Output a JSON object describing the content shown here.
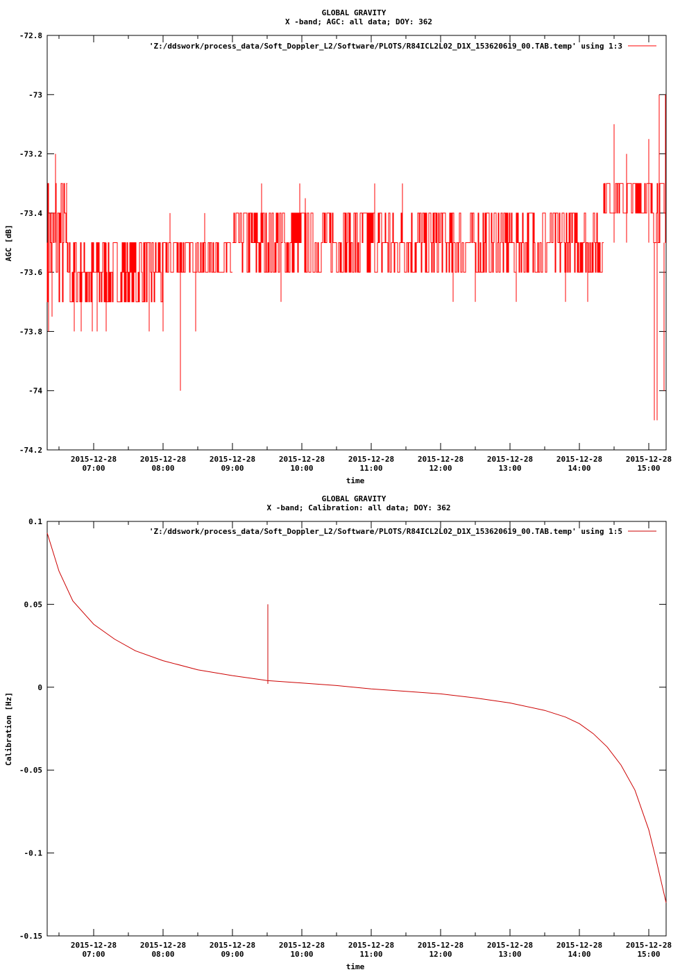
{
  "chart_data": [
    {
      "type": "line",
      "title": "GLOBAL GRAVITY",
      "subtitle": "X -band; AGC: all data; DOY: 362",
      "xlabel": "time",
      "ylabel": "AGC [dB]",
      "legend": "'Z:/ddswork/process_data/Soft_Doppler_L2/Software/PLOTS/R84ICL2L02_D1X_153620619_00.TAB.temp' using 1:3",
      "legend_position": "top-right",
      "line_color": "#ff0000",
      "x_unit": "hours",
      "xlim": [
        6.33,
        15.25
      ],
      "ylim": [
        -74.2,
        -72.8
      ],
      "x_ticks": [
        {
          "date": "2015-12-28",
          "time": "07:00",
          "x": 7
        },
        {
          "date": "2015-12-28",
          "time": "08:00",
          "x": 8
        },
        {
          "date": "2015-12-28",
          "time": "09:00",
          "x": 9
        },
        {
          "date": "2015-12-28",
          "time": "10:00",
          "x": 10
        },
        {
          "date": "2015-12-28",
          "time": "11:00",
          "x": 11
        },
        {
          "date": "2015-12-28",
          "time": "12:00",
          "x": 12
        },
        {
          "date": "2015-12-28",
          "time": "13:00",
          "x": 13
        },
        {
          "date": "2015-12-28",
          "time": "14:00",
          "x": 14
        },
        {
          "date": "2015-12-28",
          "time": "15:00",
          "x": 15
        }
      ],
      "y_ticks": [
        {
          "label": "-72.8",
          "y": -72.8
        },
        {
          "label": "-73",
          "y": -73.0
        },
        {
          "label": "-73.2",
          "y": -73.2
        },
        {
          "label": "-73.4",
          "y": -73.4
        },
        {
          "label": "-73.6",
          "y": -73.6
        },
        {
          "label": "-73.8",
          "y": -73.8
        },
        {
          "label": "-74",
          "y": -74.0
        },
        {
          "label": "-74.2",
          "y": -74.2
        }
      ],
      "series": [
        {
          "segments": [
            {
              "x0": 6.33,
              "x1": 6.62,
              "lo": -73.7,
              "hi": -73.3
            },
            {
              "x0": 6.62,
              "x1": 8.0,
              "lo": -73.7,
              "hi": -73.5
            },
            {
              "x0": 8.0,
              "x1": 9.0,
              "lo": -73.6,
              "hi": -73.5
            },
            {
              "x0": 9.0,
              "x1": 14.35,
              "lo": -73.6,
              "hi": -73.4
            },
            {
              "x0": 14.35,
              "x1": 15.0,
              "lo": -73.4,
              "hi": -73.3
            },
            {
              "x0": 15.0,
              "x1": 15.25,
              "lo": -73.5,
              "hi": -73.3
            }
          ],
          "spikes": [
            [
              6.35,
              -73.8
            ],
            [
              6.4,
              -73.75
            ],
            [
              6.45,
              -73.2
            ],
            [
              6.55,
              -73.3
            ],
            [
              6.72,
              -73.8
            ],
            [
              6.82,
              -73.8
            ],
            [
              6.98,
              -73.8
            ],
            [
              7.05,
              -73.8
            ],
            [
              7.18,
              -73.8
            ],
            [
              7.8,
              -73.8
            ],
            [
              8.0,
              -73.8
            ],
            [
              8.25,
              -74.0
            ],
            [
              8.47,
              -73.8
            ],
            [
              8.1,
              -73.4
            ],
            [
              8.6,
              -73.4
            ],
            [
              9.42,
              -73.3
            ],
            [
              9.7,
              -73.7
            ],
            [
              9.97,
              -73.3
            ],
            [
              10.05,
              -73.35
            ],
            [
              11.05,
              -73.3
            ],
            [
              11.45,
              -73.3
            ],
            [
              12.18,
              -73.7
            ],
            [
              12.5,
              -73.7
            ],
            [
              13.09,
              -73.7
            ],
            [
              13.8,
              -73.7
            ],
            [
              14.12,
              -73.7
            ],
            [
              14.5,
              -73.1
            ],
            [
              14.68,
              -73.2
            ],
            [
              15.0,
              -73.15
            ],
            [
              15.08,
              -74.1
            ],
            [
              15.12,
              -74.1
            ],
            [
              15.15,
              -73.0
            ],
            [
              15.22,
              -74.0
            ],
            [
              15.24,
              -73.0
            ]
          ]
        }
      ]
    },
    {
      "type": "line",
      "title": "GLOBAL GRAVITY",
      "subtitle": "X -band; Calibration: all data; DOY: 362",
      "xlabel": "time",
      "ylabel": "Calibration [Hz]",
      "legend": "'Z:/ddswork/process_data/Soft_Doppler_L2/Software/PLOTS/R84ICL2L02_D1X_153620619_00.TAB.temp' using 1:5",
      "legend_position": "top-right",
      "line_color": "#cc0000",
      "x_unit": "hours",
      "xlim": [
        6.33,
        15.25
      ],
      "ylim": [
        -0.15,
        0.1
      ],
      "x_ticks": [
        {
          "date": "2015-12-28",
          "time": "07:00",
          "x": 7
        },
        {
          "date": "2015-12-28",
          "time": "08:00",
          "x": 8
        },
        {
          "date": "2015-12-28",
          "time": "09:00",
          "x": 9
        },
        {
          "date": "2015-12-28",
          "time": "10:00",
          "x": 10
        },
        {
          "date": "2015-12-28",
          "time": "11:00",
          "x": 11
        },
        {
          "date": "2015-12-28",
          "time": "12:00",
          "x": 12
        },
        {
          "date": "2015-12-28",
          "time": "13:00",
          "x": 13
        },
        {
          "date": "2015-12-28",
          "time": "14:00",
          "x": 14
        },
        {
          "date": "2015-12-28",
          "time": "15:00",
          "x": 15
        }
      ],
      "y_ticks": [
        {
          "label": "0.1",
          "y": 0.1
        },
        {
          "label": "0.05",
          "y": 0.05
        },
        {
          "label": "0",
          "y": 0.0
        },
        {
          "label": "-0.05",
          "y": -0.05
        },
        {
          "label": "-0.1",
          "y": -0.1
        },
        {
          "label": "-0.15",
          "y": -0.15
        }
      ],
      "series": [
        {
          "x": [
            6.33,
            6.5,
            6.7,
            7.0,
            7.3,
            7.6,
            8.0,
            8.5,
            9.0,
            9.5,
            10.0,
            10.5,
            11.0,
            11.5,
            12.0,
            12.5,
            13.0,
            13.5,
            13.8,
            14.0,
            14.2,
            14.4,
            14.6,
            14.8,
            15.0,
            15.1,
            15.25
          ],
          "y": [
            0.093,
            0.07,
            0.052,
            0.038,
            0.029,
            0.022,
            0.016,
            0.0105,
            0.007,
            0.004,
            0.0025,
            0.001,
            -0.001,
            -0.0025,
            -0.004,
            -0.0065,
            -0.0095,
            -0.014,
            -0.018,
            -0.022,
            -0.028,
            -0.036,
            -0.047,
            -0.062,
            -0.086,
            -0.103,
            -0.13
          ]
        }
      ],
      "spike": {
        "x": 9.51,
        "y_top": 0.05,
        "y_bottom": 0.002
      }
    }
  ]
}
